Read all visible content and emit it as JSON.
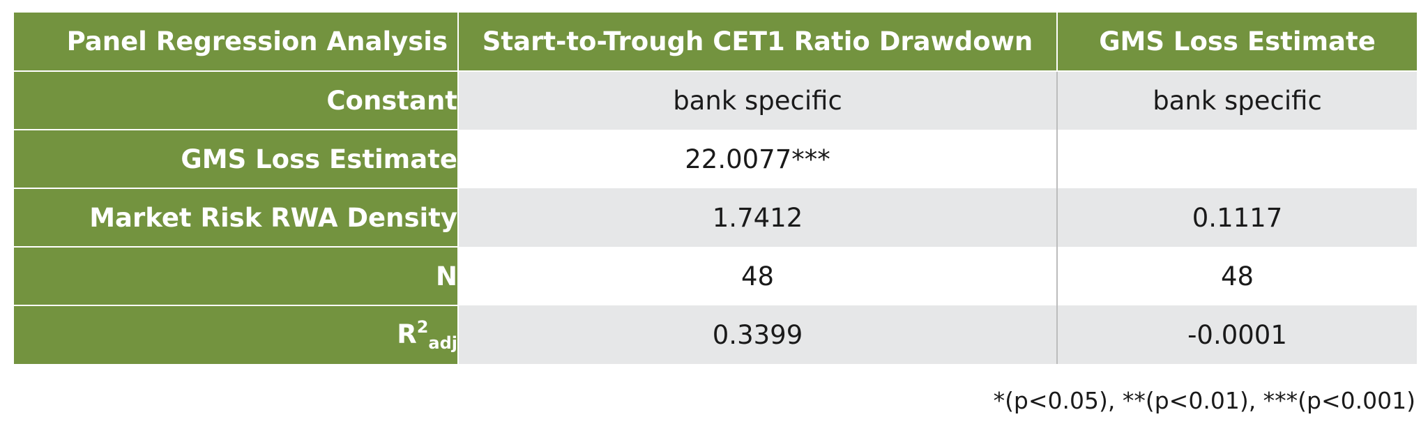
{
  "table": {
    "header": {
      "label": "Panel Regression Analysis",
      "col1": "Start-to-Trough CET1 Ratio Drawdown",
      "col2": "GMS Loss Estimate"
    },
    "rows": [
      {
        "label": "Constant",
        "col1": "bank specific",
        "col2": "bank specific"
      },
      {
        "label": "GMS Loss Estimate",
        "col1": "22.0077***",
        "col2": ""
      },
      {
        "label": "Market Risk RWA Density",
        "col1": "1.7412",
        "col2": "0.1117"
      },
      {
        "label": "N",
        "col1": "48",
        "col2": "48"
      },
      {
        "label_base": "R",
        "label_sup": "2",
        "label_sub": "adj",
        "col1": "0.3399",
        "col2": "-0.0001"
      }
    ]
  },
  "footnote": "*(p<0.05), **(p<0.01), ***(p<0.001)",
  "colors": {
    "header_green": "#73933f",
    "row_shade": "#e6e7e8",
    "text": "#1a1a1a"
  }
}
